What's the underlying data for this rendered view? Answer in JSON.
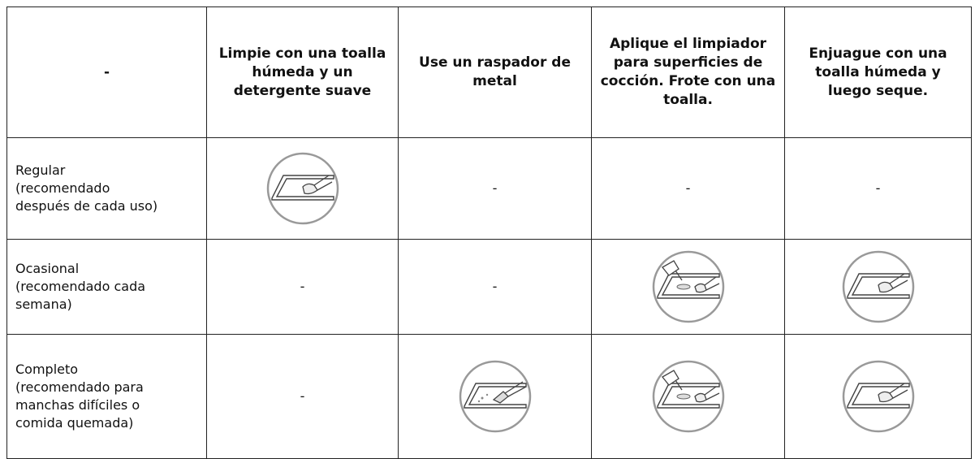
{
  "header": [
    "-",
    "Limpie con una toalla húmeda y un detergente suave",
    "Use un raspador de metal",
    "Aplique el limpiador para superficies de cocción. Frote con una toalla.",
    "Enjuague con una toalla húmeda y luego seque."
  ],
  "rows": [
    {
      "label": "Regular (recomendado después de cada uso)",
      "dashes": [
        "-",
        "-",
        "-"
      ]
    },
    {
      "label": "Ocasional (recomendado cada semana)",
      "dashes": [
        "-",
        "-"
      ]
    },
    {
      "label": "Completo (recomendado para manchas difíciles o comida quemada)",
      "dashes": [
        "-"
      ]
    }
  ]
}
